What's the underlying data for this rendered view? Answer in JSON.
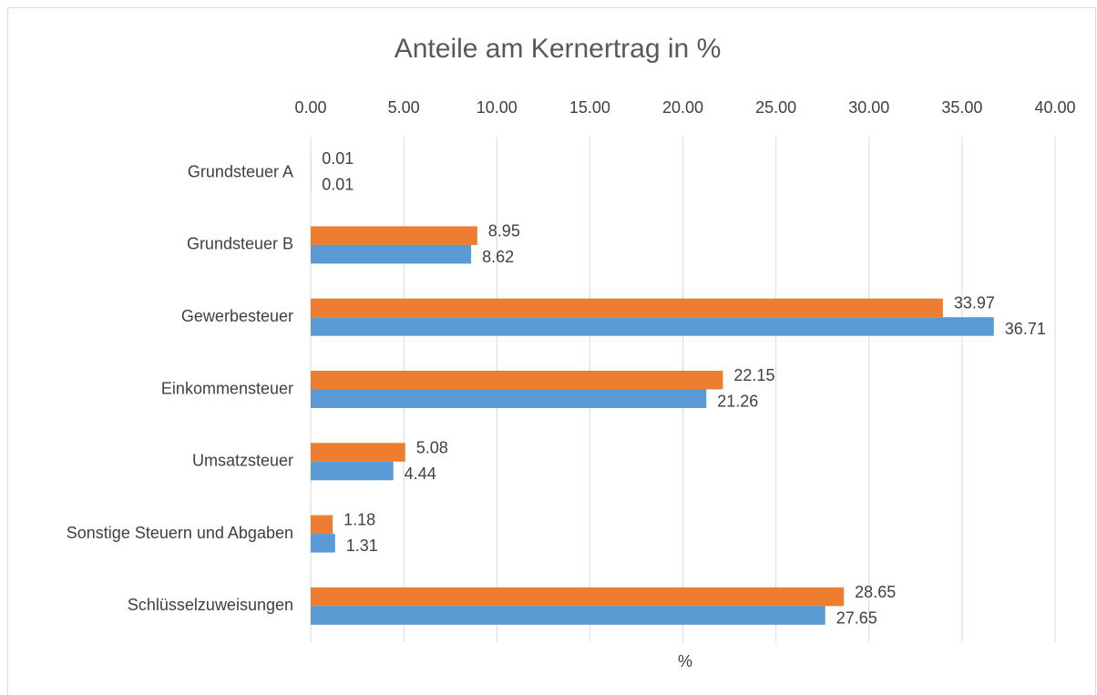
{
  "chart_data": {
    "type": "hbar",
    "title": "Anteile am Kernertrag in %",
    "x_label": "%",
    "categories": [
      "Grundsteuer A",
      "Grundsteuer B",
      "Gewerbesteuer",
      "Einkommensteuer",
      "Umsatzsteuer",
      "Sonstige Steuern und Abgaben",
      "Schlüsselzuweisungen"
    ],
    "series": [
      {
        "color": "#ed7d31",
        "values": [
          0.01,
          8.95,
          33.97,
          22.15,
          5.08,
          1.18,
          28.65
        ]
      },
      {
        "color": "#5b9bd5",
        "values": [
          0.01,
          8.62,
          36.71,
          21.26,
          4.44,
          1.31,
          27.65
        ]
      }
    ],
    "xlim": [
      0,
      40
    ],
    "xticks": [
      {
        "value": 0,
        "label": "0.00"
      },
      {
        "value": 5,
        "label": "5.00"
      },
      {
        "value": 10,
        "label": "10.00"
      },
      {
        "value": 15,
        "label": "15.00"
      },
      {
        "value": 20,
        "label": "20.00"
      },
      {
        "value": 25,
        "label": "25.00"
      },
      {
        "value": 30,
        "label": "30.00"
      },
      {
        "value": 35,
        "label": "35.00"
      },
      {
        "value": 40,
        "label": "40.00"
      }
    ],
    "grid": true
  }
}
